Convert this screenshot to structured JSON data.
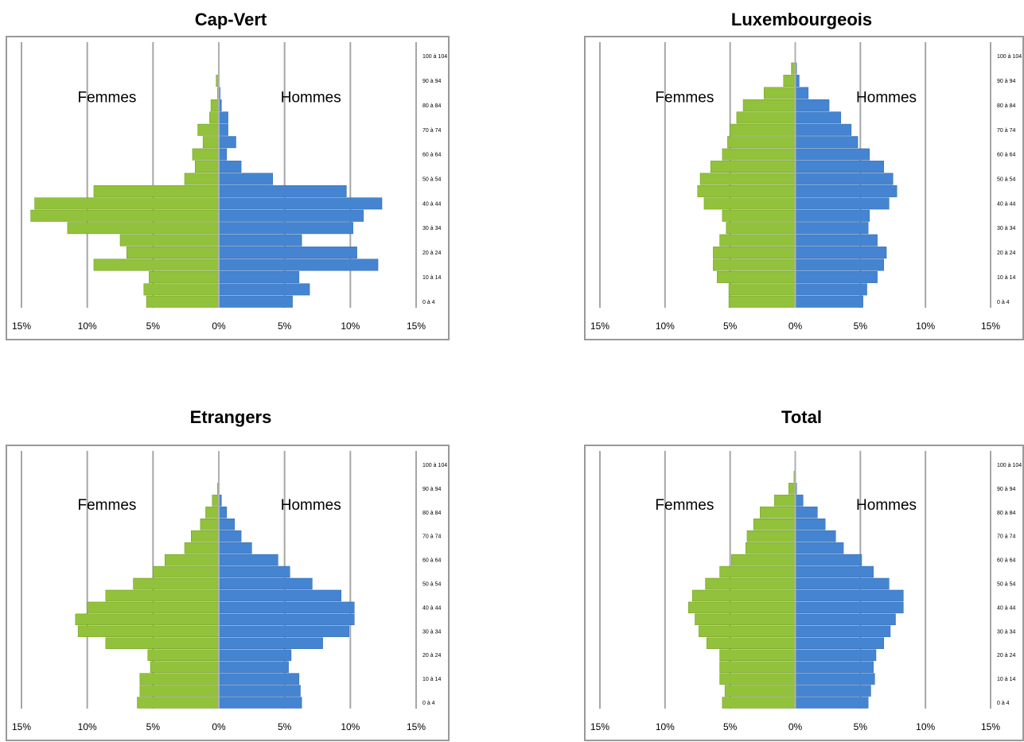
{
  "chart_data": [
    {
      "type": "bar",
      "orientation": "horizontal",
      "title": "Cap-Vert",
      "side_labels": {
        "left": "Femmes",
        "right": "Hommes"
      },
      "x_ticks": [
        "15%",
        "10%",
        "5%",
        "0%",
        "5%",
        "10%",
        "15%"
      ],
      "y_tick_labels": [
        "0 à 4",
        "10 à 14",
        "20 à 24",
        "30 à 34",
        "40 à 44",
        "50 à 54",
        "60 à 64",
        "70 à 74",
        "80 à 84",
        "90 à 94",
        "100 à 104"
      ],
      "xlim": [
        -15,
        15
      ],
      "categories": [
        "0 à 4",
        "5 à 9",
        "10 à 14",
        "15 à 19",
        "20 à 24",
        "25 à 29",
        "30 à 34",
        "35 à 39",
        "40 à 44",
        "45 à 49",
        "50 à 54",
        "55 à 59",
        "60 à 64",
        "65 à 69",
        "70 à 74",
        "75 à 79",
        "80 à 84",
        "85 à 89",
        "90 à 94",
        "95 à 99",
        "100 à 104"
      ],
      "series": [
        {
          "name": "Femmes",
          "color": "#92c13b",
          "values": [
            5.5,
            5.7,
            5.3,
            9.5,
            7.0,
            7.5,
            11.5,
            14.3,
            14.0,
            9.5,
            2.6,
            1.8,
            2.0,
            1.2,
            1.6,
            0.7,
            0.6,
            0.1,
            0.2,
            0.0,
            0.0
          ]
        },
        {
          "name": "Hommes",
          "color": "#4584d1",
          "values": [
            5.6,
            6.9,
            6.1,
            12.1,
            10.5,
            6.3,
            10.2,
            11.0,
            12.4,
            9.7,
            4.1,
            1.7,
            0.6,
            1.3,
            0.7,
            0.7,
            0.2,
            0.1,
            0.0,
            0.0,
            0.0
          ]
        }
      ]
    },
    {
      "type": "bar",
      "orientation": "horizontal",
      "title": "Luxembourgeois",
      "side_labels": {
        "left": "Femmes",
        "right": "Hommes"
      },
      "x_ticks": [
        "15%",
        "10%",
        "5%",
        "0%",
        "5%",
        "10%",
        "15%"
      ],
      "y_tick_labels": [
        "0 à 4",
        "10 à 14",
        "20 à 24",
        "30 à 34",
        "40 à 44",
        "50 à 54",
        "60 à 64",
        "70 à 74",
        "80 à 84",
        "90 à 94",
        "100 à 104"
      ],
      "xlim": [
        -15,
        15
      ],
      "categories": [
        "0 à 4",
        "5 à 9",
        "10 à 14",
        "15 à 19",
        "20 à 24",
        "25 à 29",
        "30 à 34",
        "35 à 39",
        "40 à 44",
        "45 à 49",
        "50 à 54",
        "55 à 59",
        "60 à 64",
        "65 à 69",
        "70 à 74",
        "75 à 79",
        "80 à 84",
        "85 à 89",
        "90 à 94",
        "95 à 99",
        "100 à 104"
      ],
      "series": [
        {
          "name": "Femmes",
          "color": "#92c13b",
          "values": [
            5.1,
            5.1,
            6.0,
            6.3,
            6.3,
            5.8,
            5.3,
            5.6,
            7.0,
            7.5,
            7.3,
            6.5,
            5.6,
            5.2,
            5.0,
            4.5,
            4.0,
            2.4,
            0.9,
            0.3,
            0.0
          ]
        },
        {
          "name": "Hommes",
          "color": "#4584d1",
          "values": [
            5.2,
            5.5,
            6.3,
            6.8,
            7.0,
            6.3,
            5.6,
            5.7,
            7.2,
            7.8,
            7.5,
            6.8,
            5.7,
            4.8,
            4.3,
            3.5,
            2.6,
            1.0,
            0.3,
            0.1,
            0.0
          ]
        }
      ]
    },
    {
      "type": "bar",
      "orientation": "horizontal",
      "title": "Etrangers",
      "side_labels": {
        "left": "Femmes",
        "right": "Hommes"
      },
      "x_ticks": [
        "15%",
        "10%",
        "5%",
        "0%",
        "5%",
        "10%",
        "15%"
      ],
      "y_tick_labels": [
        "0 à 4",
        "10 à 14",
        "20 à 24",
        "30 à 34",
        "40 à 44",
        "50 à 54",
        "60 à 64",
        "70 à 74",
        "80 à 84",
        "90 à 94",
        "100 à 104"
      ],
      "xlim": [
        -15,
        15
      ],
      "categories": [
        "0 à 4",
        "5 à 9",
        "10 à 14",
        "15 à 19",
        "20 à 24",
        "25 à 29",
        "30 à 34",
        "35 à 39",
        "40 à 44",
        "45 à 49",
        "50 à 54",
        "55 à 59",
        "60 à 64",
        "65 à 69",
        "70 à 74",
        "75 à 79",
        "80 à 84",
        "85 à 89",
        "90 à 94",
        "95 à 99",
        "100 à 104"
      ],
      "series": [
        {
          "name": "Femmes",
          "color": "#92c13b",
          "values": [
            6.2,
            6.0,
            6.0,
            5.2,
            5.4,
            8.6,
            10.7,
            10.9,
            10.0,
            8.6,
            6.5,
            5.0,
            4.1,
            2.6,
            2.1,
            1.4,
            1.0,
            0.5,
            0.1,
            0.0,
            0.0
          ]
        },
        {
          "name": "Hommes",
          "color": "#4584d1",
          "values": [
            6.3,
            6.2,
            6.1,
            5.3,
            5.5,
            7.9,
            9.9,
            10.3,
            10.3,
            9.3,
            7.1,
            5.4,
            4.5,
            2.5,
            1.7,
            1.2,
            0.6,
            0.2,
            0.0,
            0.0,
            0.0
          ]
        }
      ]
    },
    {
      "type": "bar",
      "orientation": "horizontal",
      "title": "Total",
      "side_labels": {
        "left": "Femmes",
        "right": "Hommes"
      },
      "x_ticks": [
        "15%",
        "10%",
        "5%",
        "0%",
        "5%",
        "10%",
        "15%"
      ],
      "y_tick_labels": [
        "0 à 4",
        "10 à 14",
        "20 à 24",
        "30 à 34",
        "40 à 44",
        "50 à 54",
        "60 à 64",
        "70 à 74",
        "80 à 84",
        "90 à 94",
        "100 à 104"
      ],
      "xlim": [
        -15,
        15
      ],
      "categories": [
        "0 à 4",
        "5 à 9",
        "10 à 14",
        "15 à 19",
        "20 à 24",
        "25 à 29",
        "30 à 34",
        "35 à 39",
        "40 à 44",
        "45 à 49",
        "50 à 54",
        "55 à 59",
        "60 à 64",
        "65 à 69",
        "70 à 74",
        "75 à 79",
        "80 à 84",
        "85 à 89",
        "90 à 94",
        "95 à 99",
        "100 à 104"
      ],
      "series": [
        {
          "name": "Femmes",
          "color": "#92c13b",
          "values": [
            5.6,
            5.4,
            5.8,
            5.8,
            5.8,
            6.8,
            7.4,
            7.7,
            8.2,
            7.9,
            6.9,
            5.8,
            4.9,
            3.8,
            3.7,
            3.2,
            2.7,
            1.6,
            0.5,
            0.1,
            0.0
          ]
        },
        {
          "name": "Hommes",
          "color": "#4584d1",
          "values": [
            5.6,
            5.8,
            6.1,
            6.0,
            6.2,
            6.8,
            7.3,
            7.7,
            8.3,
            8.3,
            7.2,
            6.0,
            5.1,
            3.7,
            3.1,
            2.3,
            1.7,
            0.6,
            0.1,
            0.0,
            0.0
          ]
        }
      ]
    }
  ]
}
